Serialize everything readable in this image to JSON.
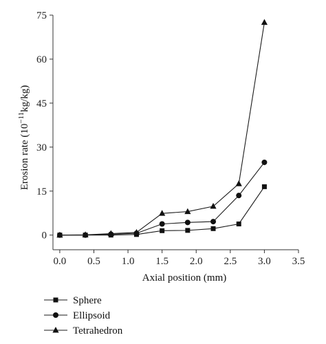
{
  "chart_data": {
    "type": "line",
    "xlabel": "Axial position (mm)",
    "ylabel_main": "Erosion rate (10",
    "ylabel_exp": "−11",
    "ylabel_tail": "kg/kg)",
    "xlim": [
      -0.1,
      3.5
    ],
    "ylim": [
      -5,
      75
    ],
    "xticks": [
      "0.0",
      "0.5",
      "1.0",
      "1.5",
      "2.0",
      "2.5",
      "3.0",
      "3.5"
    ],
    "yticks": [
      "0",
      "15",
      "30",
      "45",
      "60",
      "75"
    ],
    "grid": false,
    "legend_position": "bottom-left",
    "x": [
      0.0,
      0.375,
      0.75,
      1.125,
      1.5,
      1.875,
      2.25,
      2.625,
      3.0
    ],
    "series": [
      {
        "name": "Sphere",
        "marker": "square",
        "values": [
          0.0,
          0.0,
          0.0,
          0.2,
          1.5,
          1.6,
          2.2,
          3.8,
          16.5
        ]
      },
      {
        "name": "Ellipsoid",
        "marker": "circle",
        "values": [
          0.0,
          0.0,
          0.3,
          0.6,
          3.8,
          4.3,
          4.6,
          13.5,
          24.8
        ]
      },
      {
        "name": "Tetrahedron",
        "marker": "triangle",
        "values": [
          0.0,
          0.1,
          0.5,
          0.9,
          7.4,
          8.0,
          9.8,
          17.5,
          72.5
        ]
      }
    ],
    "colors": {
      "line": "#1a1a1a",
      "marker": "#111111",
      "axis": "#333333"
    }
  }
}
